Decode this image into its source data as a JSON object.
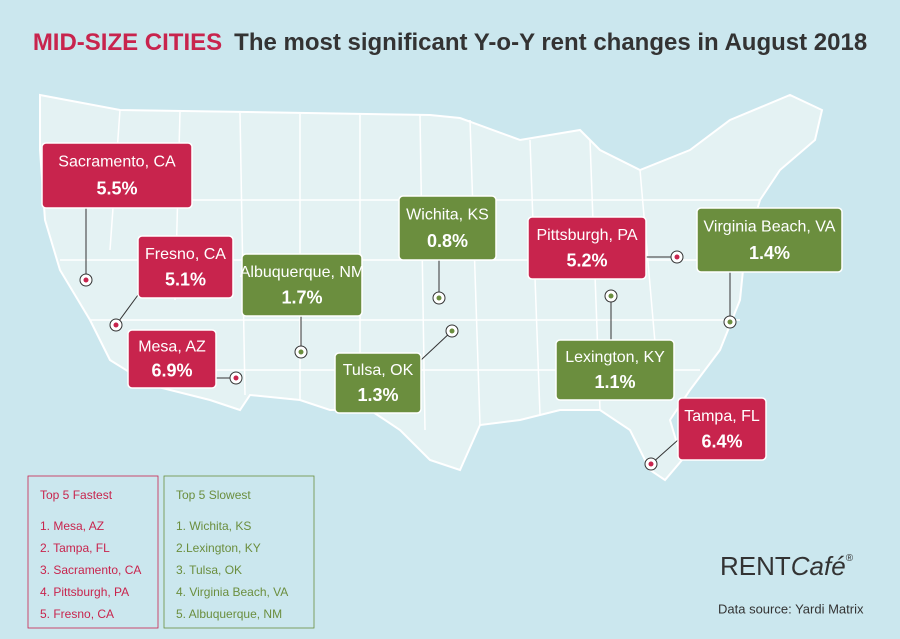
{
  "header": {
    "highlight": "MID-SIZE CITIES",
    "title": "The most significant Y-o-Y rent changes in August 2018"
  },
  "callouts": [
    {
      "city": "Sacramento, CA",
      "change": "5.5%",
      "color": "#c8244d"
    },
    {
      "city": "Fresno, CA",
      "change": "5.1%",
      "color": "#c8244d"
    },
    {
      "city": "Mesa, AZ",
      "change": "6.9%",
      "color": "#c8244d"
    },
    {
      "city": "Albuquerque, NM",
      "change": "1.7%",
      "color": "#6b8e3e"
    },
    {
      "city": "Wichita, KS",
      "change": "0.8%",
      "color": "#6b8e3e"
    },
    {
      "city": "Tulsa, OK",
      "change": "1.3%",
      "color": "#6b8e3e"
    },
    {
      "city": "Pittsburgh, PA",
      "change": "5.2%",
      "color": "#c8244d"
    },
    {
      "city": "Virginia Beach, VA",
      "change": "1.4%",
      "color": "#6b8e3e"
    },
    {
      "city": "Lexington, KY",
      "change": "1.1%",
      "color": "#6b8e3e"
    },
    {
      "city": "Tampa, FL",
      "change": "6.4%",
      "color": "#c8244d"
    }
  ],
  "fastest": {
    "title": "Top 5 Fastest",
    "items": [
      "1. Mesa, AZ",
      "2. Tampa, FL",
      "3. Sacramento, CA",
      "4. Pittsburgh, PA",
      "5. Fresno, CA"
    ]
  },
  "slowest": {
    "title": "Top 5 Slowest",
    "items": [
      "1. Wichita, KS",
      "2.Lexington, KY",
      "3. Tulsa, OK",
      "4. Virginia Beach, VA",
      "5. Albuquerque, NM"
    ]
  },
  "logo": {
    "brand": "RENT",
    "script": "Café",
    "mark": "®"
  },
  "source": "Data source:  Yardi Matrix"
}
